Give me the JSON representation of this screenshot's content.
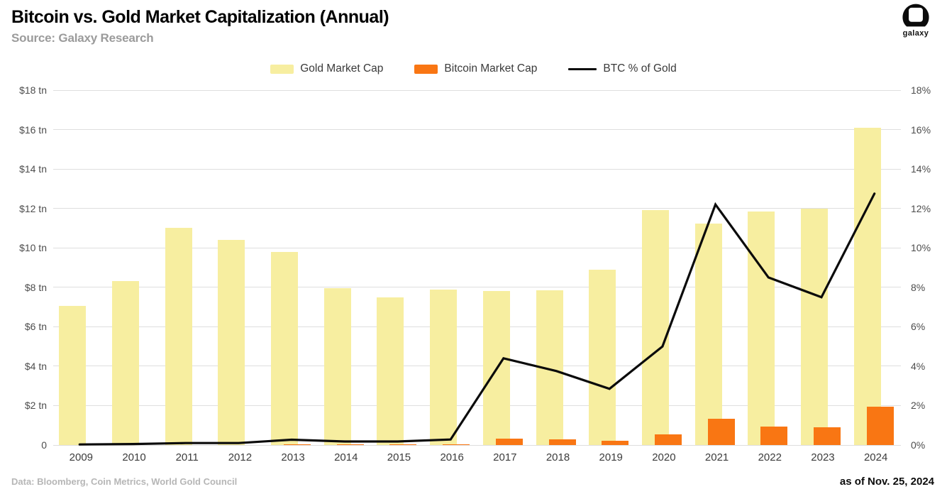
{
  "header": {
    "title": "Bitcoin vs. Gold Market Capitalization (Annual)",
    "subtitle": "Source: Galaxy Research",
    "logo": {
      "text": "galaxy"
    }
  },
  "chart_data": {
    "type": "combo-bar-line",
    "title": "Bitcoin vs. Gold Market Capitalization (Annual)",
    "categories": [
      "2009",
      "2010",
      "2011",
      "2012",
      "2013",
      "2014",
      "2015",
      "2016",
      "2017",
      "2018",
      "2019",
      "2020",
      "2021",
      "2022",
      "2023",
      "2024"
    ],
    "series": [
      {
        "name": "Gold Market Cap",
        "type": "bar",
        "axis": "left",
        "unit": "$ tn",
        "color": "#f7eea0",
        "values": [
          7.05,
          8.3,
          11.0,
          10.4,
          9.8,
          7.95,
          7.5,
          7.9,
          7.8,
          7.85,
          8.9,
          11.9,
          11.25,
          11.85,
          12.0,
          16.1
        ]
      },
      {
        "name": "Bitcoin Market Cap",
        "type": "bar",
        "axis": "left",
        "unit": "$ tn",
        "color": "#f97613",
        "values": [
          0,
          0,
          0,
          0,
          0.015,
          0.01,
          0.01,
          0.02,
          0.33,
          0.3,
          0.22,
          0.54,
          1.32,
          0.92,
          0.9,
          1.95
        ]
      },
      {
        "name": "BTC % of Gold",
        "type": "line",
        "axis": "right",
        "unit": "%",
        "color": "#0b0b0b",
        "values": [
          0.03,
          0.05,
          0.1,
          0.1,
          0.27,
          0.18,
          0.18,
          0.28,
          4.4,
          3.75,
          2.85,
          5.0,
          12.2,
          8.5,
          7.5,
          12.75
        ]
      }
    ],
    "left_axis": {
      "min": 0,
      "max": 18,
      "tick_step": 2,
      "tick_labels": [
        "0",
        "$2 tn",
        "$4 tn",
        "$6 tn",
        "$8 tn",
        "$10 tn",
        "$12 tn",
        "$14 tn",
        "$16 tn",
        "$18 tn"
      ]
    },
    "right_axis": {
      "min": 0,
      "max": 18,
      "tick_step": 2,
      "tick_labels": [
        "0%",
        "2%",
        "4%",
        "6%",
        "8%",
        "10%",
        "12%",
        "14%",
        "16%",
        "18%"
      ]
    },
    "grid": "horizontal",
    "legend_position": "top-center"
  },
  "footer": {
    "data_note": "Data: Bloomberg, Coin Metrics, World Gold Council",
    "as_of": "as of Nov. 25, 2024"
  }
}
